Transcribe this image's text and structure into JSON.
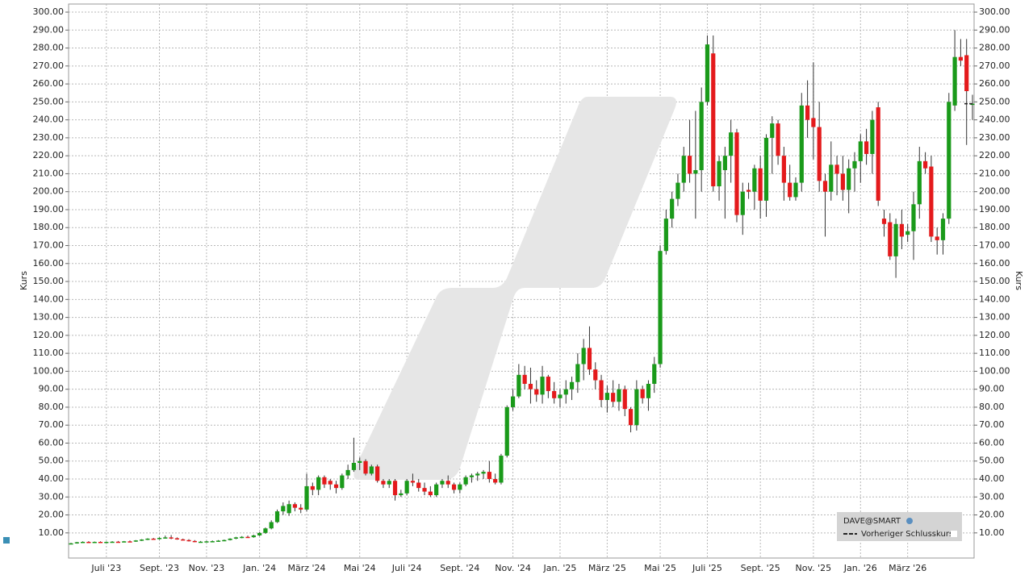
{
  "chart_data": {
    "type": "candlestick",
    "y_label": "Kurs",
    "categories": [
      null,
      null,
      null,
      null,
      null,
      null,
      "Juli '23",
      null,
      null,
      null,
      null,
      null,
      null,
      null,
      null,
      "Sept. '23",
      null,
      null,
      null,
      null,
      null,
      null,
      null,
      "Nov. '23",
      null,
      null,
      null,
      null,
      null,
      null,
      null,
      null,
      "Jan. '24",
      null,
      null,
      null,
      null,
      null,
      null,
      null,
      "März '24",
      null,
      null,
      null,
      null,
      null,
      null,
      null,
      null,
      "Mai '24",
      null,
      null,
      null,
      null,
      null,
      null,
      null,
      "Juli '24",
      null,
      null,
      null,
      null,
      null,
      null,
      null,
      null,
      "Sept. '24",
      null,
      null,
      null,
      null,
      null,
      null,
      null,
      null,
      "Nov. '24",
      null,
      null,
      null,
      null,
      null,
      null,
      null,
      "Jan. '25",
      null,
      null,
      null,
      null,
      null,
      null,
      null,
      "März '25",
      null,
      null,
      null,
      null,
      null,
      null,
      null,
      null,
      "Mai '25",
      null,
      null,
      null,
      null,
      null,
      null,
      null,
      "Juli '25",
      null,
      null,
      null,
      null,
      null,
      null,
      null,
      null,
      "Sept. '25",
      null,
      null,
      null,
      null,
      null,
      null,
      null,
      null,
      "Nov. '25",
      null,
      null,
      null,
      null,
      null,
      null,
      null,
      "Jan. '26",
      null,
      null,
      null,
      null,
      null,
      null,
      null,
      "März '26",
      null,
      null,
      null,
      null,
      null,
      null,
      null,
      null,
      null,
      null,
      null
    ],
    "series": [
      {
        "name": "DAVE@SMART",
        "up_color": "#1a9a1a",
        "down_color": "#e41a1c",
        "open": [
          4,
          4.2,
          4.8,
          5,
          4.9,
          5,
          4.8,
          5,
          5.1,
          5,
          5.3,
          5.2,
          5.8,
          6.3,
          6.8,
          6.6,
          7.2,
          7.5,
          7,
          6.4,
          6,
          5.5,
          5,
          5.1,
          5.3,
          5.4,
          5.7,
          6,
          6.8,
          7.5,
          7.8,
          7.6,
          8.6,
          10,
          12.5,
          16,
          22,
          21,
          26,
          24,
          23,
          36,
          34,
          41,
          39,
          37,
          35,
          42,
          45,
          49,
          50,
          43,
          47,
          39,
          37,
          39,
          31,
          32,
          39,
          38,
          35,
          33,
          31,
          37,
          39,
          37,
          34,
          37,
          41,
          42,
          43,
          44,
          40,
          38,
          53,
          80,
          86,
          98,
          93,
          90,
          87,
          97,
          89,
          85,
          87,
          90,
          94,
          104,
          113,
          101,
          95,
          84,
          88,
          83,
          90,
          79,
          70,
          90,
          85,
          93,
          104,
          167,
          185,
          196,
          205,
          220,
          210,
          212,
          250,
          277,
          203,
          212,
          220,
          233,
          187,
          201,
          200,
          213,
          195,
          230,
          238,
          220,
          205,
          197,
          205,
          248,
          241,
          236,
          206,
          200,
          215,
          210,
          201,
          213,
          217,
          228,
          221,
          247,
          185,
          183,
          164,
          182,
          176,
          178,
          193,
          217,
          214,
          175,
          173,
          185,
          248,
          275,
          276,
          249
        ],
        "high": [
          4.5,
          5,
          5.3,
          5.4,
          5.2,
          5.3,
          5.2,
          5.4,
          5.5,
          5.5,
          5.8,
          6,
          6.5,
          7,
          7.2,
          7.5,
          8.5,
          8.8,
          7.5,
          6.8,
          6.5,
          6,
          5.5,
          5.6,
          5.8,
          6,
          6.3,
          7,
          7.8,
          8.2,
          8.5,
          9,
          10.5,
          13,
          17,
          23,
          27,
          28,
          27,
          26,
          43,
          38,
          42,
          42,
          40,
          39,
          43,
          48,
          63,
          52,
          51,
          48,
          48,
          40,
          40,
          40,
          34,
          40,
          43,
          40,
          38,
          36,
          38,
          40,
          42,
          38,
          38,
          42,
          43,
          44,
          45,
          50,
          43,
          54,
          81,
          90,
          104,
          103,
          102,
          95,
          103,
          98,
          94,
          90,
          95,
          97,
          110,
          118,
          125,
          105,
          98,
          92,
          95,
          93,
          92,
          80,
          95,
          92,
          95,
          108,
          170,
          190,
          200,
          210,
          225,
          240,
          245,
          258,
          287,
          287,
          220,
          225,
          240,
          235,
          205,
          205,
          215,
          220,
          232,
          242,
          240,
          225,
          215,
          208,
          255,
          262,
          272,
          250,
          210,
          228,
          220,
          220,
          218,
          222,
          232,
          235,
          245,
          250,
          190,
          188,
          185,
          190,
          182,
          200,
          225,
          222,
          220,
          180,
          188,
          255,
          290,
          285,
          285,
          254
        ],
        "low": [
          3.8,
          4,
          4.5,
          4.7,
          4.6,
          4.7,
          4.5,
          4.8,
          4.8,
          4.8,
          5,
          5,
          5.5,
          6,
          6.3,
          6.3,
          6.8,
          6.5,
          6.2,
          5.8,
          5.2,
          4.8,
          4.6,
          4.8,
          5,
          5.1,
          5.4,
          5.8,
          6.5,
          7,
          7.3,
          7.3,
          8.2,
          9.5,
          12,
          15.5,
          20,
          19.5,
          22,
          21,
          22,
          31,
          31,
          35,
          34,
          32,
          34,
          40,
          44,
          45,
          42,
          42,
          38,
          35,
          35,
          28,
          30,
          31,
          36,
          33,
          31,
          30,
          30,
          35,
          35,
          32,
          32,
          36,
          38,
          39,
          40,
          38,
          37,
          37,
          52,
          78,
          85,
          90,
          82,
          83,
          82,
          85,
          82,
          80,
          82,
          84,
          88,
          95,
          98,
          90,
          80,
          77,
          80,
          78,
          75,
          66,
          67,
          82,
          78,
          88,
          102,
          165,
          180,
          192,
          200,
          205,
          185,
          200,
          248,
          200,
          195,
          185,
          205,
          183,
          176,
          196,
          190,
          185,
          186,
          210,
          215,
          195,
          195,
          195,
          200,
          230,
          218,
          200,
          175,
          195,
          198,
          195,
          188,
          200,
          205,
          215,
          210,
          192,
          175,
          162,
          152,
          168,
          172,
          162,
          185,
          210,
          172,
          165,
          165,
          182,
          245,
          270,
          226,
          240
        ],
        "close": [
          4.2,
          4.8,
          5,
          4.9,
          5,
          4.8,
          5,
          5.1,
          5,
          5.3,
          5.2,
          5.8,
          6.3,
          6.8,
          6.6,
          7.2,
          7.5,
          7,
          6.4,
          6,
          5.5,
          5,
          5.1,
          5.3,
          5.4,
          5.7,
          6,
          6.8,
          7.5,
          7.8,
          7.6,
          8.6,
          10,
          12.5,
          16,
          22,
          25,
          26,
          24,
          23,
          36,
          34,
          41,
          37,
          37,
          35,
          42,
          45,
          49,
          50,
          43,
          47,
          39,
          37,
          39,
          31,
          32,
          39,
          38,
          35,
          33,
          31,
          37,
          39,
          37,
          34,
          37,
          41,
          42,
          43,
          44,
          40,
          38,
          53,
          80,
          86,
          98,
          93,
          90,
          87,
          97,
          89,
          85,
          87,
          90,
          94,
          104,
          113,
          101,
          95,
          84,
          88,
          83,
          90,
          79,
          70,
          90,
          85,
          93,
          104,
          167,
          185,
          196,
          205,
          220,
          210,
          212,
          250,
          282,
          203,
          217,
          220,
          233,
          187,
          200,
          200,
          213,
          195,
          230,
          238,
          220,
          205,
          197,
          205,
          248,
          240,
          236,
          206,
          200,
          215,
          210,
          201,
          213,
          217,
          228,
          221,
          240,
          195,
          182,
          164,
          182,
          175,
          178,
          193,
          217,
          213,
          175,
          173,
          185,
          250,
          275,
          273,
          256,
          249
        ]
      }
    ],
    "previous_close": {
      "name": "Vorheriger Schlusskurs",
      "value": 249
    },
    "ylim": [
      -4,
      304.5
    ],
    "yticks": [
      {
        "value": 10,
        "label": "10.00"
      },
      {
        "value": 20,
        "label": "20.00"
      },
      {
        "value": 30,
        "label": "30.00"
      },
      {
        "value": 40,
        "label": "40.00"
      },
      {
        "value": 50,
        "label": "50.00"
      },
      {
        "value": 60,
        "label": "60.00"
      },
      {
        "value": 70,
        "label": "70.00"
      },
      {
        "value": 80,
        "label": "80.00"
      },
      {
        "value": 90,
        "label": "90.00"
      },
      {
        "value": 100,
        "label": "100.00"
      },
      {
        "value": 110,
        "label": "110.00"
      },
      {
        "value": 120,
        "label": "120.00"
      },
      {
        "value": 130,
        "label": "130.00"
      },
      {
        "value": 140,
        "label": "140.00"
      },
      {
        "value": 150,
        "label": "150.00"
      },
      {
        "value": 160,
        "label": "160.00"
      },
      {
        "value": 170,
        "label": "170.00"
      },
      {
        "value": 180,
        "label": "180.00"
      },
      {
        "value": 190,
        "label": "190.00"
      },
      {
        "value": 200,
        "label": "200.00"
      },
      {
        "value": 210,
        "label": "210.00"
      },
      {
        "value": 220,
        "label": "220.00"
      },
      {
        "value": 230,
        "label": "230.00"
      },
      {
        "value": 240,
        "label": "240.00"
      },
      {
        "value": 250,
        "label": "250.00"
      },
      {
        "value": 260,
        "label": "260.00"
      },
      {
        "value": 270,
        "label": "270.00"
      },
      {
        "value": 280,
        "label": "280.00"
      },
      {
        "value": 290,
        "label": "290.00"
      },
      {
        "value": 300,
        "label": "300.00"
      }
    ],
    "grid": true
  }
}
